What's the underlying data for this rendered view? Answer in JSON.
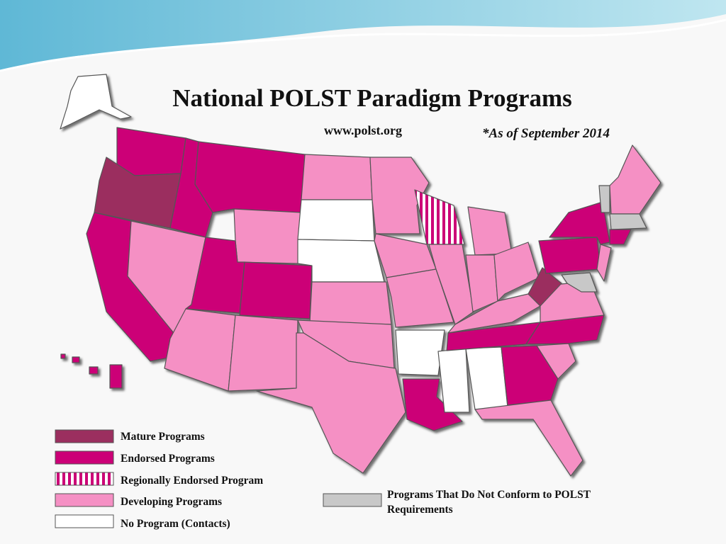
{
  "header": {
    "title": "National POLST Paradigm Programs",
    "website": "www.polst.org",
    "date_note": "*As of September 2014"
  },
  "legend": {
    "items": [
      {
        "label": "Mature Programs",
        "color": "#9b2f5f"
      },
      {
        "label": "Endorsed Programs",
        "color": "#cc0077"
      },
      {
        "label": "Regionally Endorsed Program",
        "color": "striped"
      },
      {
        "label": "Developing Programs",
        "color": "#f590c4"
      },
      {
        "label": "No Program (Contacts)",
        "color": "#ffffff"
      },
      {
        "label": "Programs That Do Not Conform to POLST Requirements",
        "color": "#c8c8c8"
      }
    ]
  }
}
